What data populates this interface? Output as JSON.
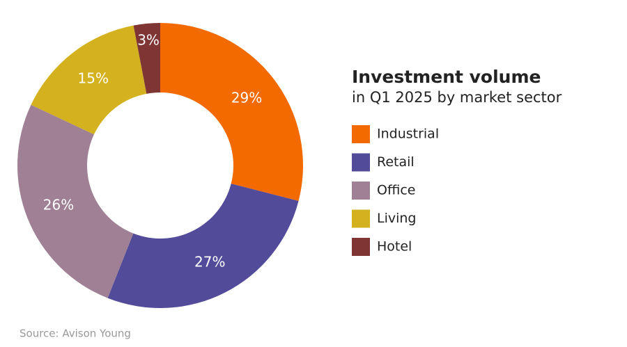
{
  "chart_data": {
    "type": "pie",
    "title": "Investment volume",
    "subtitle": "in Q1 2025 by market sector",
    "categories": [
      "Industrial",
      "Retail",
      "Office",
      "Living",
      "Hotel"
    ],
    "values": [
      29,
      27,
      26,
      15,
      3
    ],
    "value_labels": [
      "29%",
      "27%",
      "26%",
      "15%",
      "3%"
    ],
    "colors": [
      "#f26a00",
      "#524b9a",
      "#a08095",
      "#d4b21f",
      "#7e3533"
    ],
    "legend": "right",
    "source": "Source: Avison Young"
  }
}
